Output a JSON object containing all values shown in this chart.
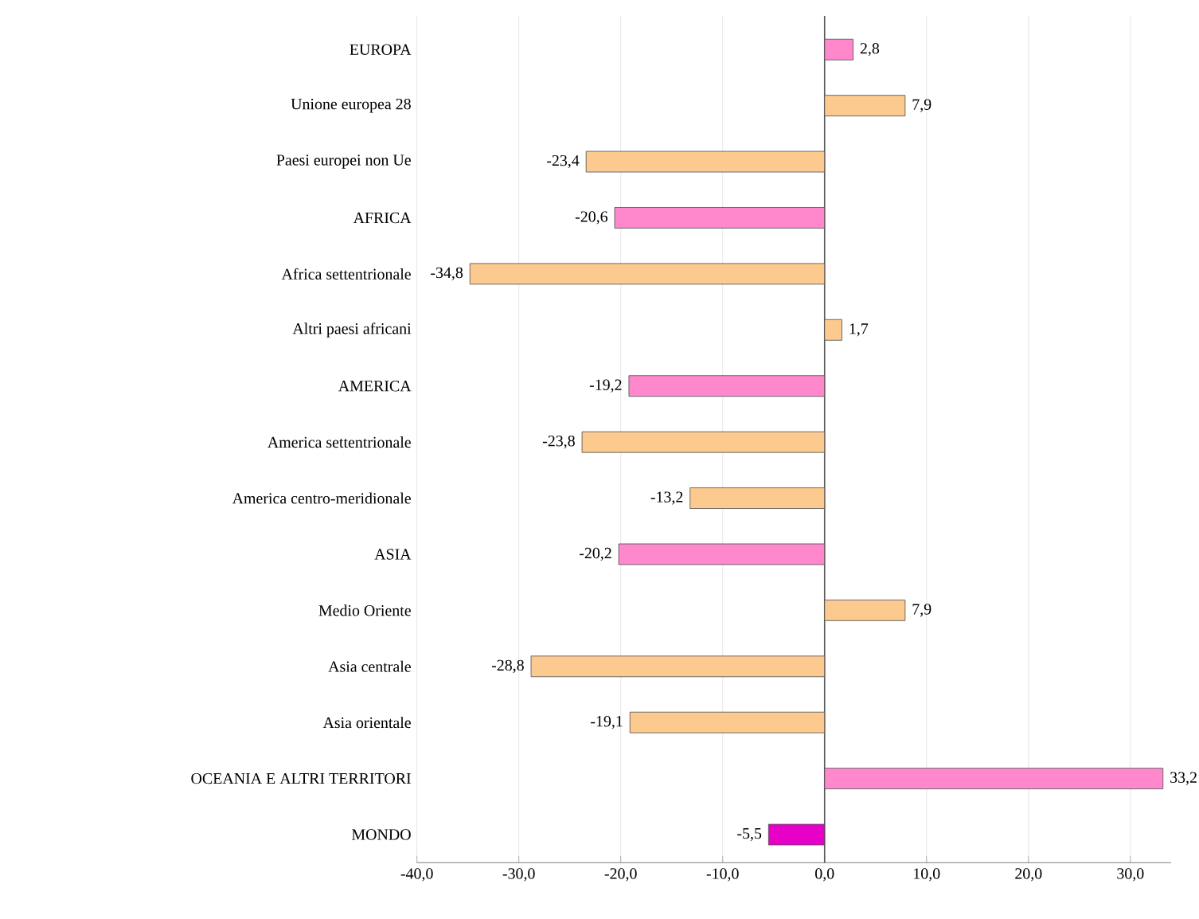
{
  "chart_data": {
    "type": "bar",
    "orientation": "horizontal",
    "categories": [
      "EUROPA",
      "Unione europea 28",
      "Paesi europei non Ue",
      "AFRICA",
      "Africa settentrionale",
      "Altri paesi africani",
      "AMERICA",
      "America settentrionale",
      "America centro-meridionale",
      "ASIA",
      "Medio Oriente",
      "Asia centrale",
      "Asia orientale",
      "OCEANIA E ALTRI TERRITORI",
      "MONDO"
    ],
    "values": [
      2.8,
      7.9,
      -23.4,
      -20.6,
      -34.8,
      1.7,
      -19.2,
      -23.8,
      -13.2,
      -20.2,
      7.9,
      -28.8,
      -19.1,
      33.2,
      -5.5
    ],
    "value_labels": [
      "2,8",
      "7,9",
      "-23,4",
      "-20,6",
      "-34,8",
      "1,7",
      "-19,2",
      "-23,8",
      "-13,2",
      "-20,2",
      "7,9",
      "-28,8",
      "-19,1",
      "33,2",
      "-5,5"
    ],
    "colors": [
      "#ff88cc",
      "#fcc98f",
      "#fcc98f",
      "#ff88cc",
      "#fcc98f",
      "#fcc98f",
      "#ff88cc",
      "#fcc98f",
      "#fcc98f",
      "#ff88cc",
      "#fcc98f",
      "#fcc98f",
      "#fcc98f",
      "#ff88cc",
      "#e600c8"
    ],
    "xlim": [
      -40,
      34
    ],
    "xticks": [
      {
        "value": -40,
        "label": "-40,0"
      },
      {
        "value": -30,
        "label": "-30,0"
      },
      {
        "value": -20,
        "label": "-20,0"
      },
      {
        "value": -10,
        "label": "-10,0"
      },
      {
        "value": 0,
        "label": "0,0"
      },
      {
        "value": 10,
        "label": "10,0"
      },
      {
        "value": 20,
        "label": "20,0"
      },
      {
        "value": 30,
        "label": "30,0"
      }
    ],
    "grid": "x"
  }
}
